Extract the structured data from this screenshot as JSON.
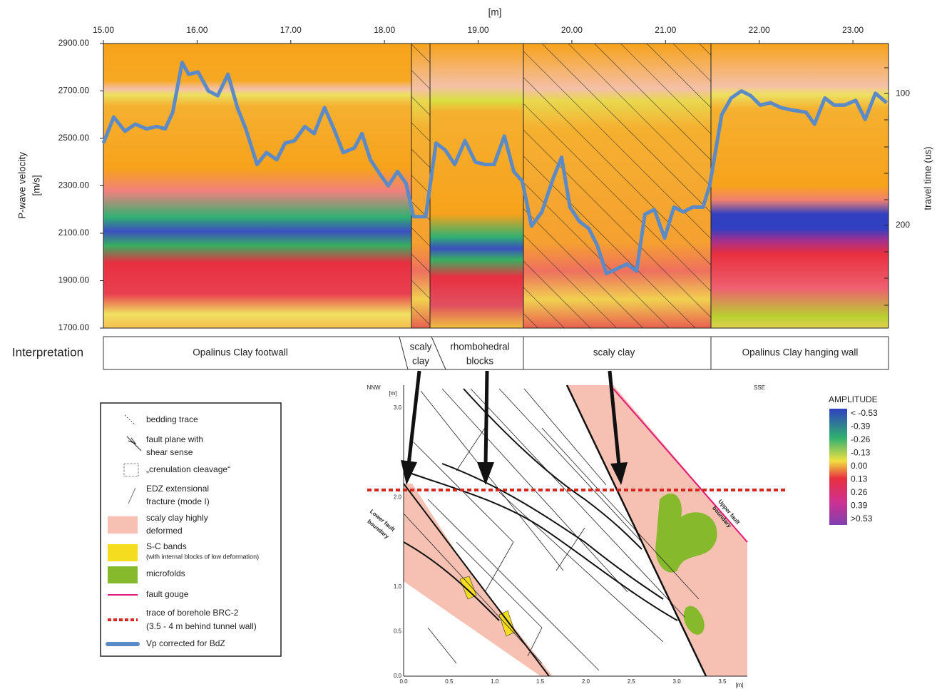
{
  "chart_data": {
    "type": "line",
    "x_label": "[m]",
    "y_label": [
      "P-wave velocity",
      "[m/s]"
    ],
    "y2_label": "travel time (us)",
    "x": [
      15.0,
      15.11,
      15.23,
      15.34,
      15.46,
      15.57,
      15.66,
      15.74,
      15.84,
      15.91,
      16.01,
      16.12,
      16.22,
      16.33,
      16.43,
      16.52,
      16.64,
      16.74,
      16.85,
      16.94,
      17.04,
      17.15,
      17.25,
      17.36,
      17.46,
      17.56,
      17.68,
      17.76,
      17.85,
      17.95,
      18.04,
      18.14,
      18.23,
      18.31,
      18.44,
      18.55,
      18.65,
      18.75,
      18.86,
      18.97,
      19.07,
      19.17,
      19.28,
      19.38,
      19.47,
      19.57,
      19.68,
      19.8,
      19.89,
      19.98,
      20.08,
      20.18,
      20.27,
      20.37,
      20.48,
      20.59,
      20.69,
      20.78,
      20.88,
      20.99,
      21.09,
      21.19,
      21.29,
      21.4,
      21.47,
      21.6,
      21.7,
      21.81,
      21.91,
      22.01,
      22.12,
      22.23,
      22.34,
      22.5,
      22.59,
      22.7,
      22.8,
      22.91,
      23.03,
      23.13,
      23.24,
      23.36
    ],
    "series": [
      {
        "name": "Vp corrected for BdZ",
        "color": "#5b8ac6",
        "values": [
          2480,
          2590,
          2530,
          2560,
          2540,
          2550,
          2540,
          2610,
          2820,
          2770,
          2780,
          2700,
          2680,
          2770,
          2630,
          2540,
          2390,
          2440,
          2410,
          2480,
          2490,
          2550,
          2520,
          2630,
          2540,
          2440,
          2460,
          2520,
          2410,
          2350,
          2300,
          2360,
          2310,
          2170,
          2170,
          2480,
          2450,
          2390,
          2490,
          2400,
          2390,
          2390,
          2510,
          2360,
          2320,
          2130,
          2190,
          2330,
          2420,
          2210,
          2150,
          2120,
          2050,
          1930,
          1950,
          1970,
          1940,
          2180,
          2200,
          2080,
          2210,
          2190,
          2210,
          2210,
          2300,
          2600,
          2670,
          2700,
          2680,
          2640,
          2650,
          2630,
          2620,
          2610,
          2560,
          2670,
          2640,
          2640,
          2660,
          2580,
          2690,
          2650
        ]
      }
    ],
    "xlim": [
      15,
      23.38
    ],
    "xticks": [
      {
        "value": 15,
        "label": "15.00"
      },
      {
        "value": 16,
        "label": "16.00"
      },
      {
        "value": 17,
        "label": "17.00"
      },
      {
        "value": 18,
        "label": "18.00"
      },
      {
        "value": 19,
        "label": "19.00"
      },
      {
        "value": 20,
        "label": "20.00"
      },
      {
        "value": 21,
        "label": "21.00"
      },
      {
        "value": 22,
        "label": "22.00"
      },
      {
        "value": 23,
        "label": "23.00"
      }
    ],
    "ylim": [
      1700,
      2900
    ],
    "yticks": [
      {
        "value": 1700,
        "label": "1700.00"
      },
      {
        "value": 1900,
        "label": "1900.00"
      },
      {
        "value": 2100,
        "label": "2100.00"
      },
      {
        "value": 2300,
        "label": "2300.00"
      },
      {
        "value": 2500,
        "label": "2500.00"
      },
      {
        "value": 2700,
        "label": "2700.00"
      },
      {
        "value": 2900,
        "label": "2900.00"
      }
    ],
    "y2lim": [
      278,
      62
    ],
    "y2ticks": [
      100,
      200
    ]
  },
  "interpretation": {
    "title": "Interpretation",
    "cells": [
      [
        "Opalinus Clay footwall"
      ],
      [
        "scaly",
        "clay"
      ],
      [
        "rhombohedral",
        "blocks"
      ],
      [
        "scaly clay"
      ],
      [
        "Opalinus Clay hanging wall"
      ]
    ]
  },
  "legend": {
    "items": [
      [
        "bedding trace"
      ],
      [
        "fault plane with",
        "shear sense"
      ],
      [
        "„crenulation cleavage“"
      ],
      [
        "EDZ extensional",
        "fracture (mode I)"
      ],
      [
        "scaly clay highly",
        "deformed"
      ],
      [
        "S-C bands",
        "(with internal blocks of low deformation)"
      ],
      [
        "microfolds"
      ],
      [
        "fault gouge"
      ],
      [
        "trace of borehole BRC-2",
        "(3.5 - 4 m behind tunnel wall)"
      ]
    ]
  },
  "colorbar": {
    "title": "AMPLITUDE",
    "labels": [
      "< -0.53",
      "-0.39",
      "-0.26",
      "-0.13",
      "0.00",
      "0.13",
      "0.26",
      "0.39",
      ">0.53"
    ]
  },
  "diagram": {
    "left": "NNW",
    "right": "SSE",
    "y_unit": "[m]",
    "x_unit": "[m]",
    "x_ticks": [
      "0.0",
      "0.5",
      "1.0",
      "1.5",
      "2.0",
      "2.5",
      "3.0",
      "3.5"
    ],
    "y_ticks": [
      "0.0",
      "0.5",
      "1.0",
      "2.0",
      "3.0"
    ],
    "lower_boundary": [
      "Lower fault",
      "boundary"
    ],
    "upper_boundary": [
      "Upper fault",
      "boundary"
    ]
  }
}
